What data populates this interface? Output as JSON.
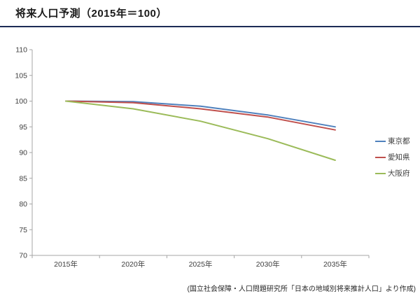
{
  "header": {
    "title": "将来人口予測（2015年＝100）"
  },
  "footer": {
    "source_note": "(国立社会保障・人口問題研究所「日本の地域別将来推計人口」より作成)"
  },
  "colors": {
    "title_underline": "#1c2b55",
    "axis_line": "#a6a6a6",
    "tick_label": "#404040",
    "series_tokyo": "#4F81BD",
    "series_aichi": "#C0504D",
    "series_osaka": "#9BBB59"
  },
  "chart_data": {
    "type": "line",
    "title": "将来人口予測（2015年＝100）",
    "x": [
      "2015年",
      "2020年",
      "2025年",
      "2030年",
      "2035年"
    ],
    "series": [
      {
        "id": "tokyo",
        "name": "東京都",
        "color": "#4F81BD",
        "values": [
          100,
          99.9,
          99.0,
          97.3,
          95.0
        ]
      },
      {
        "id": "aichi",
        "name": "愛知県",
        "color": "#C0504D",
        "values": [
          100,
          99.7,
          98.5,
          96.9,
          94.4
        ]
      },
      {
        "id": "osaka",
        "name": "大阪府",
        "color": "#9BBB59",
        "values": [
          100,
          98.5,
          96.1,
          92.7,
          88.5
        ]
      }
    ],
    "xlabel": "",
    "ylabel": "",
    "ylim": [
      70,
      110
    ],
    "ytick_step": 5,
    "yticks": [
      70,
      75,
      80,
      85,
      90,
      95,
      100,
      105,
      110
    ],
    "grid": false,
    "legend_position": "right"
  }
}
